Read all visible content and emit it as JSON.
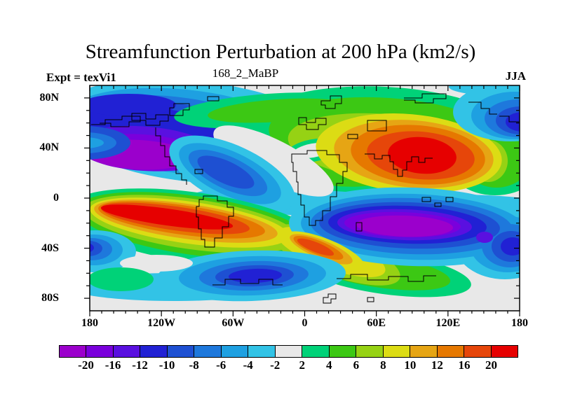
{
  "title": "Streamfunction Perturbation at 200 hPa (km2/s)",
  "subtitle": "168_2_MaBP",
  "experiment_label": "Expt = texVi1",
  "season_label": "JJA",
  "axes": {
    "x_tick_labels": [
      "180",
      "120W",
      "60W",
      "0",
      "60E",
      "120E",
      "180"
    ],
    "y_tick_labels": [
      "80N",
      "40N",
      "0",
      "40S",
      "80S"
    ]
  },
  "colorbar": {
    "boundary_labels": [
      "-20",
      "-16",
      "-12",
      "-10",
      "-8",
      "-6",
      "-4",
      "-2",
      "2",
      "4",
      "6",
      "8",
      "10",
      "12",
      "16",
      "20"
    ],
    "segment_colors": [
      "#9B00CC",
      "#7A00DC",
      "#5A10E0",
      "#2121D4",
      "#1E50D2",
      "#1E78DC",
      "#1EA0E1",
      "#32C3E6",
      "#E8E8E8",
      "#00D278",
      "#3CC814",
      "#96D214",
      "#DCDC14",
      "#E6A514",
      "#E67800",
      "#E6460A",
      "#E60000"
    ]
  },
  "map": {
    "background_color": "#E8E8E8",
    "coastline_color": "#000000"
  },
  "chart_data": {
    "type": "heatmap",
    "title": "Streamfunction Perturbation at 200 hPa (km2/s)",
    "run_id": "168_2_MaBP",
    "experiment": "texVi1",
    "season": "JJA",
    "units": "km2/s",
    "pressure_level": "200 hPa",
    "contour_levels": [
      -20,
      -16,
      -12,
      -10,
      -8,
      -6,
      -4,
      -2,
      2,
      4,
      6,
      8,
      10,
      12,
      16,
      20
    ],
    "lon_ticks_deg": [
      -180,
      -120,
      -60,
      0,
      60,
      120,
      180
    ],
    "lat_ticks_deg": [
      80,
      40,
      0,
      -40,
      -80
    ],
    "lon_range": [
      -180,
      180
    ],
    "lat_range": [
      -90,
      90
    ],
    "legend_position": "bottom",
    "grid": false,
    "features": [
      {
        "region": "North Pacific to North America, 10-70N, 180-60W",
        "sign": "negative",
        "peak_value": "< -20"
      },
      {
        "region": "North Atlantic / Europe / North Africa, 20-80N, 40W-40E",
        "sign": "positive",
        "peak_value": "6 to 10"
      },
      {
        "region": "Central and East Asia, 10-60N, 50E-130E",
        "sign": "positive",
        "peak_value": "> 20"
      },
      {
        "region": "Northwest Pacific near 45N, 160E-180",
        "sign": "negative",
        "peak_value": "-12 to -10"
      },
      {
        "region": "South Pacific subtropics, 5-30S, 180-60W",
        "sign": "positive",
        "peak_value": "> 20"
      },
      {
        "region": "South America / South Atlantic, 25-50S, 70W-10W",
        "sign": "positive",
        "peak_value": "12 to 16"
      },
      {
        "region": "Indian Ocean to Australia, 10-40S, 30E-170E",
        "sign": "negative",
        "peak_value": "< -20"
      },
      {
        "region": "Southern Ocean, 45-65S, 180-20W",
        "sign": "negative",
        "peak_value": "-12 to -10"
      },
      {
        "region": "Southern Ocean near 60S, 150W-115W",
        "sign": "positive",
        "peak_value": "2 to 4"
      },
      {
        "region": "Southern Ocean, 50-65S, 10E-110E",
        "sign": "positive",
        "peak_value": "4 to 8"
      },
      {
        "region": "Polar caps and equatorial gaps",
        "sign": "neutral",
        "peak_value": "-2 to 2"
      }
    ]
  }
}
